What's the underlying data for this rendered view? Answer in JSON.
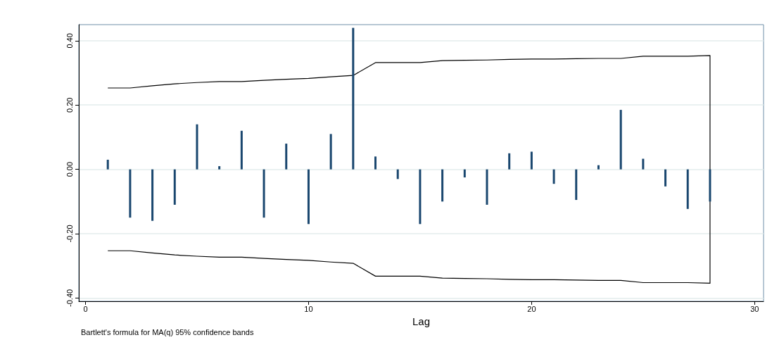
{
  "chart_data": {
    "type": "bar",
    "xlabel": "Lag",
    "annotations": [
      "Bartlett's formula for MA(q) 95% confidence bands"
    ],
    "xlim": [
      -0.3,
      30.4
    ],
    "xticks": [
      0,
      10,
      20,
      30
    ],
    "ylim": [
      -0.41,
      0.45
    ],
    "yticks": [
      {
        "value": -0.4,
        "label": "-0.40"
      },
      {
        "value": -0.2,
        "label": "-0.20"
      },
      {
        "value": 0,
        "label": "0.00"
      },
      {
        "value": 0.2,
        "label": "0.20"
      },
      {
        "value": 0.4,
        "label": "0.40"
      }
    ],
    "grid": "y",
    "series": [
      {
        "color": "#1a476f",
        "x": [
          1,
          2,
          3,
          4,
          5,
          6,
          7,
          8,
          9,
          10,
          11,
          12,
          13,
          14,
          15,
          16,
          17,
          18,
          19,
          20,
          21,
          22,
          23,
          24,
          25,
          26,
          27,
          28
        ],
        "values": [
          0.03,
          -0.15,
          -0.16,
          -0.11,
          0.14,
          0.01,
          0.12,
          -0.15,
          0.08,
          -0.17,
          0.11,
          0.44,
          0.04,
          -0.03,
          -0.17,
          -0.1,
          -0.025,
          -0.11,
          0.05,
          0.055,
          -0.045,
          -0.095,
          0.013,
          0.185,
          0.033,
          -0.053,
          -0.123,
          -0.1
        ]
      },
      {
        "type": "line",
        "color": "#000000",
        "marker": "none",
        "line_style": "solid",
        "x": [
          1,
          2,
          3,
          4,
          5,
          6,
          7,
          8,
          9,
          10,
          11,
          12,
          13,
          14,
          15,
          16,
          17,
          18,
          19,
          20,
          21,
          22,
          23,
          24,
          25,
          26,
          27,
          28,
          28,
          27,
          26,
          25,
          24,
          23,
          22,
          21,
          20,
          19,
          18,
          17,
          16,
          15,
          14,
          13,
          12,
          11,
          10,
          9,
          8,
          7,
          6,
          5,
          4,
          3,
          2,
          1
        ],
        "values": [
          -0.253,
          -0.253,
          -0.26,
          -0.266,
          -0.27,
          -0.273,
          -0.273,
          -0.277,
          -0.28,
          -0.283,
          -0.288,
          -0.292,
          -0.332,
          -0.332,
          -0.332,
          -0.338,
          -0.339,
          -0.34,
          -0.342,
          -0.343,
          -0.343,
          -0.344,
          -0.345,
          -0.345,
          -0.352,
          -0.352,
          -0.352,
          -0.354,
          0.354,
          0.352,
          0.352,
          0.352,
          0.345,
          0.345,
          0.344,
          0.343,
          0.343,
          0.342,
          0.34,
          0.339,
          0.338,
          0.332,
          0.332,
          0.332,
          0.292,
          0.288,
          0.283,
          0.28,
          0.277,
          0.273,
          0.273,
          0.27,
          0.266,
          0.26,
          0.253,
          0.253
        ]
      }
    ]
  }
}
